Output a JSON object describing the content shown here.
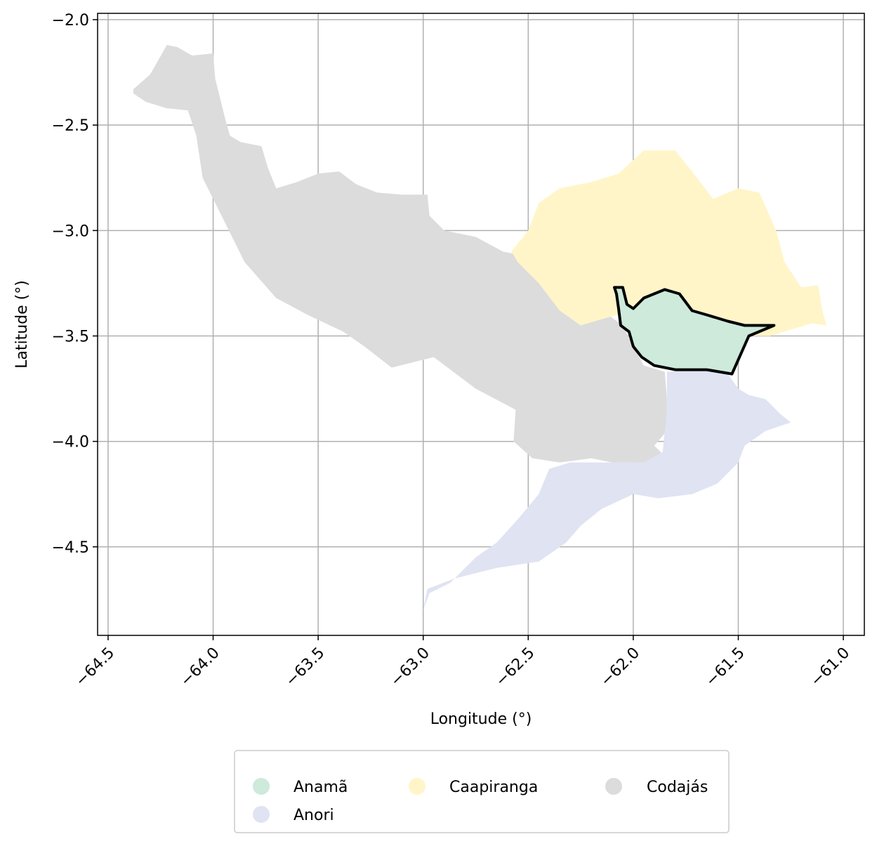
{
  "chart_data": {
    "type": "choropleth-map",
    "xlabel": "Longitude (°)",
    "ylabel": "Latitude (°)",
    "xlim": [
      -64.55,
      -60.9
    ],
    "ylim": [
      -4.92,
      -1.97
    ],
    "x_ticks": [
      -64.5,
      -64.0,
      -63.5,
      -63.0,
      -62.5,
      -62.0,
      -61.5,
      -61.0
    ],
    "x_tick_labels": [
      "−64.5",
      "−64.0",
      "−63.5",
      "−63.0",
      "−62.5",
      "−62.0",
      "−61.5",
      "−61.0"
    ],
    "y_ticks": [
      -2.0,
      -2.5,
      -3.0,
      -3.5,
      -4.0,
      -4.5
    ],
    "y_tick_labels": [
      "−2.0",
      "−2.5",
      "−3.0",
      "−3.5",
      "−4.0",
      "−4.5"
    ],
    "grid": true,
    "legend_position": "bottom-center",
    "highlighted_region": "Anamã",
    "highlight_outline_color": "#000000",
    "regions": [
      {
        "name": "Codajás",
        "color": "#dcdcdc",
        "polygon": [
          [
            -64.38,
            -2.33
          ],
          [
            -64.3,
            -2.26
          ],
          [
            -64.22,
            -2.12
          ],
          [
            -64.17,
            -2.13
          ],
          [
            -64.1,
            -2.17
          ],
          [
            -64.0,
            -2.16
          ],
          [
            -63.99,
            -2.28
          ],
          [
            -63.96,
            -2.4
          ],
          [
            -63.94,
            -2.48
          ],
          [
            -63.92,
            -2.55
          ],
          [
            -63.87,
            -2.58
          ],
          [
            -63.77,
            -2.6
          ],
          [
            -63.74,
            -2.7
          ],
          [
            -63.7,
            -2.8
          ],
          [
            -63.6,
            -2.77
          ],
          [
            -63.5,
            -2.73
          ],
          [
            -63.4,
            -2.72
          ],
          [
            -63.32,
            -2.78
          ],
          [
            -63.22,
            -2.82
          ],
          [
            -63.1,
            -2.83
          ],
          [
            -62.98,
            -2.83
          ],
          [
            -62.97,
            -2.93
          ],
          [
            -62.9,
            -3.0
          ],
          [
            -62.75,
            -3.03
          ],
          [
            -62.62,
            -3.1
          ],
          [
            -62.52,
            -3.12
          ],
          [
            -62.45,
            -3.22
          ],
          [
            -62.35,
            -3.35
          ],
          [
            -62.25,
            -3.45
          ],
          [
            -62.12,
            -3.4
          ],
          [
            -62.05,
            -3.45
          ],
          [
            -62.0,
            -3.55
          ],
          [
            -61.95,
            -3.64
          ],
          [
            -61.85,
            -3.67
          ],
          [
            -61.84,
            -3.8
          ],
          [
            -61.84,
            -3.95
          ],
          [
            -61.9,
            -4.02
          ],
          [
            -61.84,
            -4.08
          ],
          [
            -61.95,
            -4.1
          ],
          [
            -62.1,
            -4.1
          ],
          [
            -62.2,
            -4.08
          ],
          [
            -62.35,
            -4.1
          ],
          [
            -62.48,
            -4.08
          ],
          [
            -62.57,
            -4.0
          ],
          [
            -62.56,
            -3.85
          ],
          [
            -62.75,
            -3.75
          ],
          [
            -62.95,
            -3.6
          ],
          [
            -63.15,
            -3.65
          ],
          [
            -63.28,
            -3.55
          ],
          [
            -63.38,
            -3.48
          ],
          [
            -63.55,
            -3.4
          ],
          [
            -63.7,
            -3.32
          ],
          [
            -63.85,
            -3.15
          ],
          [
            -63.95,
            -2.95
          ],
          [
            -64.05,
            -2.75
          ],
          [
            -64.08,
            -2.55
          ],
          [
            -64.12,
            -2.43
          ],
          [
            -64.22,
            -2.42
          ],
          [
            -64.32,
            -2.39
          ],
          [
            -64.38,
            -2.35
          ]
        ]
      },
      {
        "name": "Caapiranga",
        "color": "#fff5c8",
        "polygon": [
          [
            -62.58,
            -3.1
          ],
          [
            -62.5,
            -3.0
          ],
          [
            -62.45,
            -2.87
          ],
          [
            -62.35,
            -2.8
          ],
          [
            -62.2,
            -2.77
          ],
          [
            -62.07,
            -2.73
          ],
          [
            -61.95,
            -2.62
          ],
          [
            -61.8,
            -2.62
          ],
          [
            -61.72,
            -2.72
          ],
          [
            -61.62,
            -2.85
          ],
          [
            -61.5,
            -2.8
          ],
          [
            -61.4,
            -2.82
          ],
          [
            -61.32,
            -3.0
          ],
          [
            -61.28,
            -3.15
          ],
          [
            -61.2,
            -3.27
          ],
          [
            -61.12,
            -3.26
          ],
          [
            -61.1,
            -3.38
          ],
          [
            -61.08,
            -3.45
          ],
          [
            -61.15,
            -3.44
          ],
          [
            -61.25,
            -3.47
          ],
          [
            -61.35,
            -3.5
          ],
          [
            -61.45,
            -3.5
          ],
          [
            -61.6,
            -3.44
          ],
          [
            -61.75,
            -3.38
          ],
          [
            -61.9,
            -3.36
          ],
          [
            -62.08,
            -3.4
          ],
          [
            -62.25,
            -3.45
          ],
          [
            -62.35,
            -3.38
          ],
          [
            -62.45,
            -3.25
          ],
          [
            -62.55,
            -3.15
          ]
        ]
      },
      {
        "name": "Anori",
        "color": "#dfe3f2",
        "polygon": [
          [
            -61.84,
            -3.67
          ],
          [
            -61.7,
            -3.66
          ],
          [
            -61.55,
            -3.68
          ],
          [
            -61.5,
            -3.75
          ],
          [
            -61.45,
            -3.78
          ],
          [
            -61.37,
            -3.8
          ],
          [
            -61.3,
            -3.87
          ],
          [
            -61.25,
            -3.91
          ],
          [
            -61.37,
            -3.95
          ],
          [
            -61.47,
            -4.02
          ],
          [
            -61.5,
            -4.1
          ],
          [
            -61.6,
            -4.2
          ],
          [
            -61.72,
            -4.25
          ],
          [
            -61.88,
            -4.27
          ],
          [
            -62.0,
            -4.25
          ],
          [
            -62.15,
            -4.32
          ],
          [
            -62.25,
            -4.4
          ],
          [
            -62.32,
            -4.48
          ],
          [
            -62.45,
            -4.57
          ],
          [
            -62.65,
            -4.6
          ],
          [
            -62.85,
            -4.65
          ],
          [
            -62.98,
            -4.7
          ],
          [
            -63.0,
            -4.8
          ],
          [
            -62.97,
            -4.72
          ],
          [
            -62.87,
            -4.67
          ],
          [
            -62.75,
            -4.55
          ],
          [
            -62.65,
            -4.48
          ],
          [
            -62.55,
            -4.37
          ],
          [
            -62.45,
            -4.25
          ],
          [
            -62.4,
            -4.13
          ],
          [
            -62.3,
            -4.1
          ],
          [
            -62.1,
            -4.1
          ],
          [
            -61.95,
            -4.1
          ],
          [
            -61.86,
            -4.05
          ],
          [
            -61.84,
            -3.85
          ]
        ]
      },
      {
        "name": "Anamã",
        "color": "#cdeadb",
        "polygon": [
          [
            -62.09,
            -3.27
          ],
          [
            -62.05,
            -3.27
          ],
          [
            -62.03,
            -3.35
          ],
          [
            -62.0,
            -3.37
          ],
          [
            -61.95,
            -3.32
          ],
          [
            -61.85,
            -3.28
          ],
          [
            -61.78,
            -3.3
          ],
          [
            -61.72,
            -3.38
          ],
          [
            -61.65,
            -3.4
          ],
          [
            -61.55,
            -3.43
          ],
          [
            -61.47,
            -3.45
          ],
          [
            -61.33,
            -3.45
          ],
          [
            -61.45,
            -3.5
          ],
          [
            -61.53,
            -3.68
          ],
          [
            -61.65,
            -3.66
          ],
          [
            -61.8,
            -3.66
          ],
          [
            -61.9,
            -3.64
          ],
          [
            -61.96,
            -3.6
          ],
          [
            -62.0,
            -3.55
          ],
          [
            -62.02,
            -3.48
          ],
          [
            -62.06,
            -3.45
          ],
          [
            -62.07,
            -3.37
          ],
          [
            -62.08,
            -3.3
          ]
        ]
      }
    ]
  },
  "legend": {
    "items": [
      {
        "label": "Anamã",
        "color": "#cdeadb"
      },
      {
        "label": "Anori",
        "color": "#dfe3f2"
      },
      {
        "label": "Caapiranga",
        "color": "#fff5c8"
      },
      {
        "label": "Codajás",
        "color": "#dcdcdc"
      }
    ]
  }
}
